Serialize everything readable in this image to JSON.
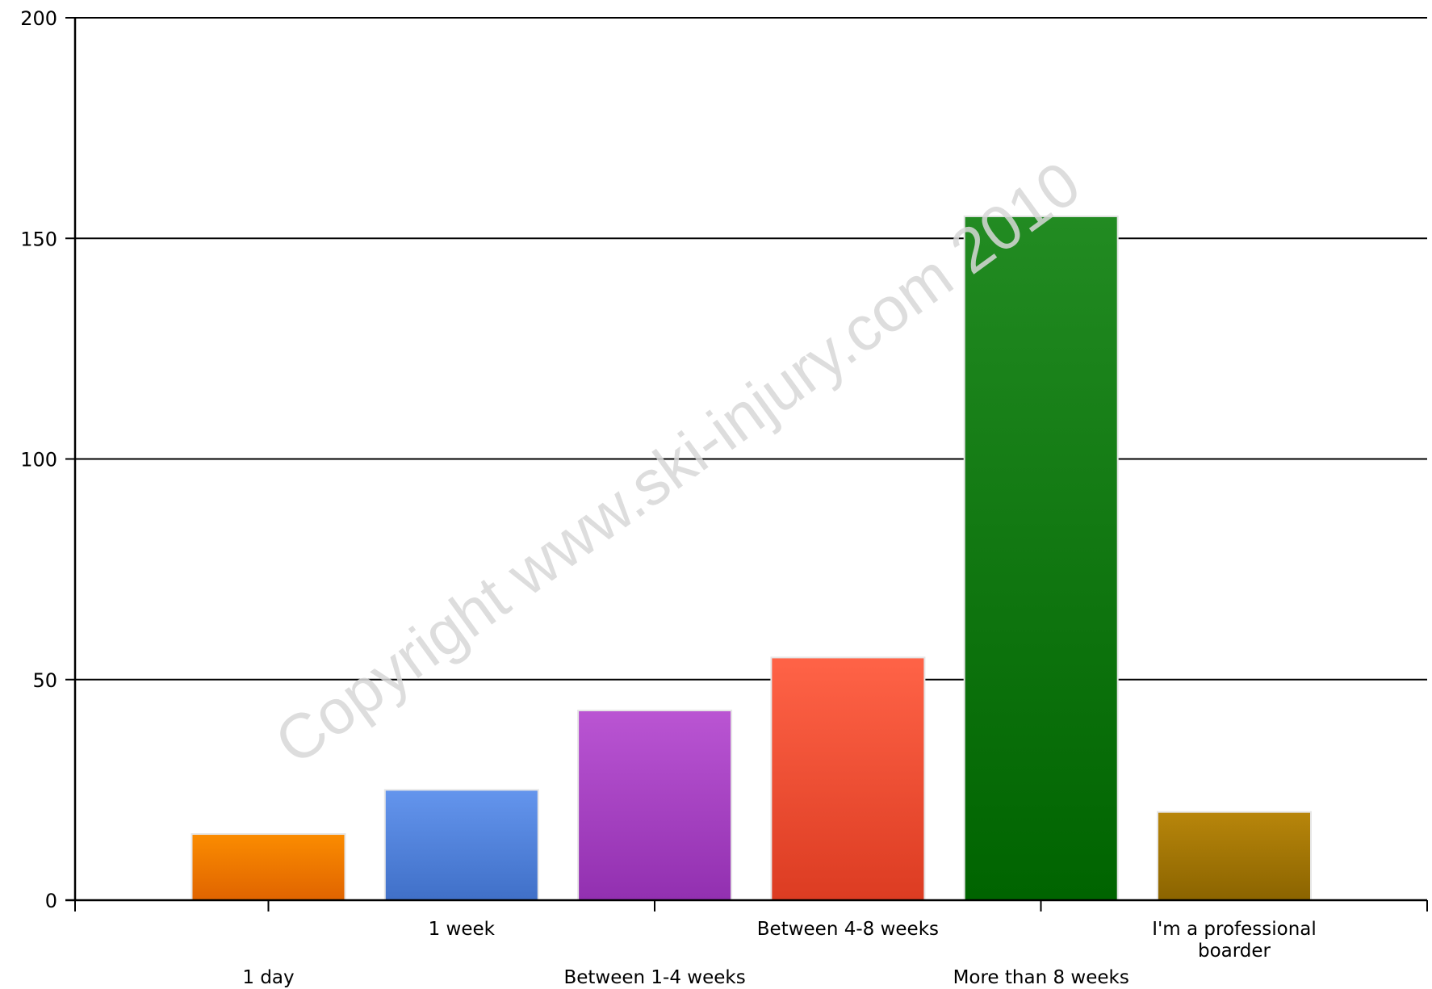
{
  "chart_data": {
    "type": "bar",
    "title": "",
    "xlabel": "",
    "ylabel": "",
    "categories": [
      "1 day",
      "1 week",
      "Between 1-4 weeks",
      "Between 4-8 weeks",
      "More than 8 weeks",
      "I'm a professional boarder"
    ],
    "values": [
      15,
      25,
      43,
      55,
      155,
      20
    ],
    "colors": [
      [
        "#fb8c00",
        "#e06400"
      ],
      [
        "#6495ed",
        "#4070c8"
      ],
      [
        "#ba55d3",
        "#9230b0"
      ],
      [
        "#ff6347",
        "#dc3c22"
      ],
      [
        "#228b22",
        "#006400"
      ],
      [
        "#b8860b",
        "#8b6400"
      ]
    ],
    "ylim": [
      0,
      200
    ],
    "yticks": [
      0,
      50,
      100,
      150,
      200
    ],
    "ytick_labels": [
      "0",
      "50",
      "100",
      "150",
      "200"
    ],
    "grid": true,
    "legend": "none",
    "watermark": "Copyright www.ski-injury.com 2010"
  }
}
